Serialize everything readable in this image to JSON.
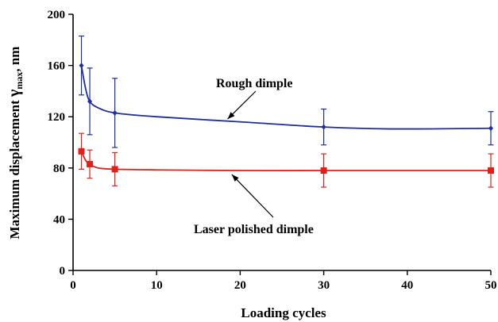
{
  "chart_data": {
    "type": "line",
    "xlabel": "Loading cycles",
    "ylabel_main": "Maximum displacement ",
    "ylabel_symbol": "γ",
    "ylabel_sub": "max",
    "ylabel_unit": ", nm",
    "xlim": [
      0,
      50
    ],
    "ylim": [
      0,
      200
    ],
    "xticks": [
      0,
      10,
      20,
      30,
      40,
      50
    ],
    "yticks": [
      0,
      40,
      80,
      120,
      160,
      200
    ],
    "grid": false,
    "series": [
      {
        "name": "Rough dimple",
        "color": "#1f2d9e",
        "marker": "diamond",
        "x": [
          1,
          2,
          5,
          30,
          50
        ],
        "y": [
          160,
          132,
          123,
          112,
          111
        ],
        "err": [
          23,
          26,
          27,
          14,
          13
        ],
        "curve": [
          [
            1,
            160
          ],
          [
            1.5,
            142
          ],
          [
            2,
            132
          ],
          [
            3,
            127
          ],
          [
            5,
            123
          ],
          [
            10,
            120
          ],
          [
            20,
            116
          ],
          [
            30,
            112
          ],
          [
            38,
            110.5
          ],
          [
            50,
            111
          ]
        ]
      },
      {
        "name": "Laser polished dimple",
        "color": "#e0201a",
        "marker": "square",
        "x": [
          1,
          2,
          5,
          30,
          50
        ],
        "y": [
          93,
          83,
          79,
          78,
          78
        ],
        "err": [
          14,
          11,
          13,
          13,
          13
        ],
        "curve": [
          [
            1,
            93
          ],
          [
            1.5,
            86
          ],
          [
            2,
            83
          ],
          [
            3,
            80
          ],
          [
            5,
            79
          ],
          [
            10,
            78.5
          ],
          [
            20,
            78
          ],
          [
            30,
            78
          ],
          [
            50,
            78
          ]
        ]
      }
    ],
    "annotations": [
      {
        "text": "Rough dimple",
        "target": [
          18.5,
          117
        ]
      },
      {
        "text": "Laser polished dimple",
        "target": [
          19,
          78
        ]
      }
    ]
  }
}
